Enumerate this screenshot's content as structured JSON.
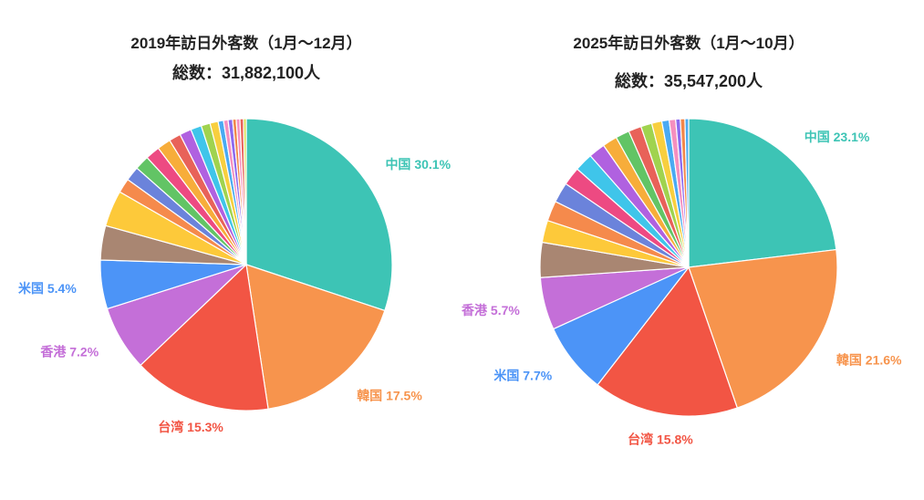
{
  "chart_data": [
    {
      "type": "pie",
      "title": "2019年訪日外客数（1月〜12月）",
      "subtitle": "総数：31,882,100人",
      "slices": [
        {
          "label": "中国",
          "value": 30.1,
          "color": "#3dc4b5",
          "show_label": true
        },
        {
          "label": "韓国",
          "value": 17.5,
          "color": "#f7944d",
          "show_label": true
        },
        {
          "label": "台湾",
          "value": 15.3,
          "color": "#f25544",
          "show_label": true
        },
        {
          "label": "香港",
          "value": 7.2,
          "color": "#c46fd8",
          "show_label": true
        },
        {
          "label": "米国",
          "value": 5.4,
          "color": "#4c94f7",
          "show_label": true
        },
        {
          "value": 3.8,
          "color": "#a98672"
        },
        {
          "value": 4.0,
          "color": "#fdc93a"
        },
        {
          "value": 1.6,
          "color": "#f58a4c"
        },
        {
          "value": 1.6,
          "color": "#6b83db"
        },
        {
          "value": 1.6,
          "color": "#62c465"
        },
        {
          "value": 1.6,
          "color": "#ed4a82"
        },
        {
          "value": 1.5,
          "color": "#f7ad3a"
        },
        {
          "value": 1.3,
          "color": "#e86259"
        },
        {
          "value": 1.3,
          "color": "#b061e0"
        },
        {
          "value": 1.2,
          "color": "#3fc5ea"
        },
        {
          "value": 1.0,
          "color": "#a0d34f"
        },
        {
          "value": 0.9,
          "color": "#f8cf3f"
        },
        {
          "value": 0.6,
          "color": "#4aaaf2"
        },
        {
          "value": 0.5,
          "color": "#f58fbf"
        },
        {
          "value": 0.5,
          "color": "#8d6af0"
        },
        {
          "value": 0.4,
          "color": "#f2874a"
        },
        {
          "value": 0.4,
          "color": "#f58fbf"
        },
        {
          "value": 0.4,
          "color": "#e86259"
        },
        {
          "value": 0.3,
          "color": "#d6e04a"
        }
      ]
    },
    {
      "type": "pie",
      "title": "2025年訪日外客数（1月〜10月）",
      "subtitle": "総数：35,547,200人",
      "slices": [
        {
          "label": "中国",
          "value": 23.1,
          "color": "#3dc4b5",
          "show_label": true
        },
        {
          "label": "韓国",
          "value": 21.6,
          "color": "#f7944d",
          "show_label": true
        },
        {
          "label": "台湾",
          "value": 15.8,
          "color": "#f25544",
          "show_label": true
        },
        {
          "label": "米国",
          "value": 7.7,
          "color": "#4c94f7",
          "show_label": true
        },
        {
          "label": "香港",
          "value": 5.7,
          "color": "#c46fd8",
          "show_label": true
        },
        {
          "value": 3.8,
          "color": "#a98672"
        },
        {
          "value": 2.4,
          "color": "#fdc93a"
        },
        {
          "value": 2.2,
          "color": "#f58a4c"
        },
        {
          "value": 2.2,
          "color": "#6b83db"
        },
        {
          "value": 2.0,
          "color": "#ed4a82"
        },
        {
          "value": 2.0,
          "color": "#3fc5ea"
        },
        {
          "value": 1.8,
          "color": "#b061e0"
        },
        {
          "value": 1.6,
          "color": "#f7ad3a"
        },
        {
          "value": 1.5,
          "color": "#62c465"
        },
        {
          "value": 1.4,
          "color": "#e86259"
        },
        {
          "value": 1.2,
          "color": "#a0d34f"
        },
        {
          "value": 1.1,
          "color": "#f8cf3f"
        },
        {
          "value": 0.8,
          "color": "#4aaaf2"
        },
        {
          "value": 0.7,
          "color": "#f58fbf"
        },
        {
          "value": 0.5,
          "color": "#8d6af0"
        },
        {
          "value": 0.5,
          "color": "#f2874a"
        },
        {
          "value": 0.4,
          "color": "#4aaaf2"
        }
      ]
    }
  ]
}
